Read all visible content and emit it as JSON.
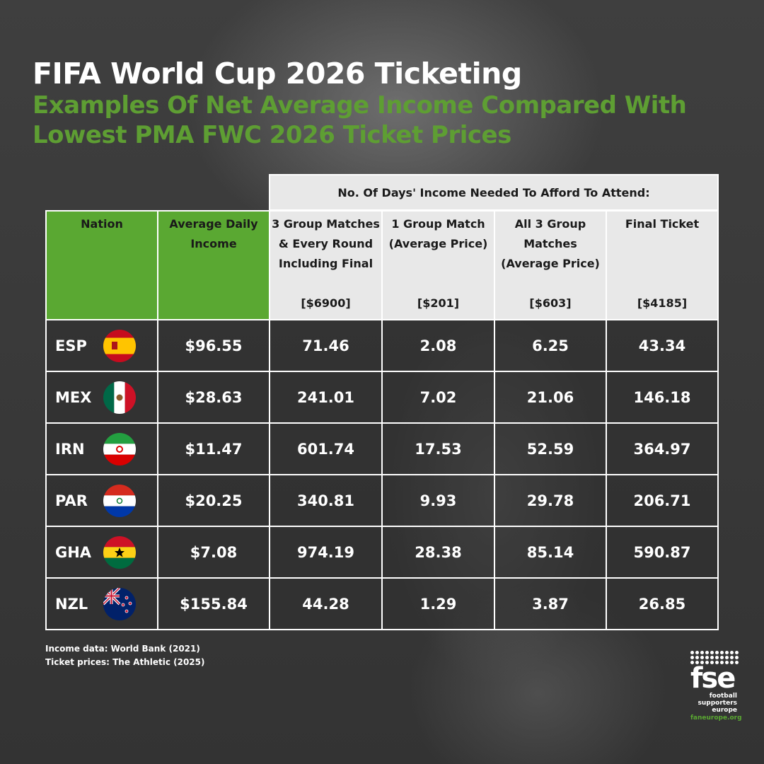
{
  "header": {
    "title": "FIFA World Cup 2026 Ticketing",
    "subtitle": "Examples Of Net Average Income Compared With Lowest PMA FWC 2026 Ticket Prices"
  },
  "table": {
    "band_label": "No. Of Days' Income Needed To Afford To Attend:",
    "col_nation": "Nation",
    "col_income": "Average Daily Income",
    "cols": [
      {
        "label": "3 Group Matches & Every Round Including Final",
        "price": "[$6900]"
      },
      {
        "label": "1 Group Match (Average Price)",
        "price": "[$201]"
      },
      {
        "label": "All 3 Group Matches (Average Price)",
        "price": "[$603]"
      },
      {
        "label": "Final Ticket",
        "price": "[$4185]"
      }
    ]
  },
  "chart_data": {
    "type": "table",
    "title": "FIFA World Cup 2026 Ticketing",
    "columns": [
      "Nation",
      "Average Daily Income",
      "3 Group Matches & Every Round Including Final [$6900]",
      "1 Group Match (Average Price) [$201]",
      "All 3 Group Matches (Average Price) [$603]",
      "Final Ticket [$4185]"
    ],
    "rows": [
      {
        "nation": "ESP",
        "flag": "spain-flag-icon",
        "income": "$96.55",
        "values": [
          "71.46",
          "2.08",
          "6.25",
          "43.34"
        ]
      },
      {
        "nation": "MEX",
        "flag": "mexico-flag-icon",
        "income": "$28.63",
        "values": [
          "241.01",
          "7.02",
          "21.06",
          "146.18"
        ]
      },
      {
        "nation": "IRN",
        "flag": "iran-flag-icon",
        "income": "$11.47",
        "values": [
          "601.74",
          "17.53",
          "52.59",
          "364.97"
        ]
      },
      {
        "nation": "PAR",
        "flag": "paraguay-flag-icon",
        "income": "$20.25",
        "values": [
          "340.81",
          "9.93",
          "29.78",
          "206.71"
        ]
      },
      {
        "nation": "GHA",
        "flag": "ghana-flag-icon",
        "income": "$7.08",
        "values": [
          "974.19",
          "28.38",
          "85.14",
          "590.87"
        ]
      },
      {
        "nation": "NZL",
        "flag": "new-zealand-flag-icon",
        "income": "$155.84",
        "values": [
          "44.28",
          "1.29",
          "3.87",
          "26.85"
        ]
      }
    ]
  },
  "footer": {
    "source_income": "Income data: World Bank (2021)",
    "source_tickets": "Ticket prices: The Athletic (2025)"
  },
  "logo": {
    "mark": "fse",
    "line1": "football",
    "line2": "supporters",
    "line3": "europe",
    "url": "faneurope.org"
  },
  "colors": {
    "accent_green": "#5aa832",
    "subtitle_green": "#5e9e33",
    "header_light": "#e8e8e8"
  }
}
